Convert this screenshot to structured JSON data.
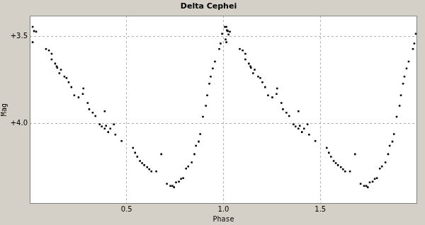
{
  "chart_data": {
    "type": "scatter",
    "title": "Delta Cephei",
    "x_label": "Phase",
    "y_label": "Mag",
    "color": "#000000",
    "marker": "square",
    "grid": true,
    "xlim": [
      0,
      2
    ],
    "xticks": [
      0.5,
      {
        "value": 1,
        "label": "1.0"
      },
      1.5
    ],
    "ylim": [
      3.38,
      4.46
    ],
    "yticks": [
      {
        "value": 3.5,
        "label": "+3.5"
      },
      {
        "value": 4,
        "label": "+4.0"
      }
    ],
    "x": [
      0.015,
      0.022,
      0.033,
      0.015,
      0.084,
      0.099,
      0.113,
      0.113,
      0.131,
      0.139,
      0.142,
      0.153,
      0.161,
      0.179,
      0.19,
      0.201,
      0.215,
      0.23,
      0.252,
      0.277,
      0.274,
      0.299,
      0.307,
      0.325,
      0.339,
      0.387,
      0.361,
      0.372,
      0.387,
      0.394,
      0.405,
      0.416,
      0.434,
      0.442,
      0.474,
      0.533,
      0.544,
      0.555,
      0.569,
      0.58,
      0.591,
      0.606,
      0.617,
      0.628,
      0.653,
      0.679,
      0.708,
      0.726,
      0.737,
      0.745,
      0.755,
      0.77,
      0.781,
      0.792,
      0.807,
      0.818,
      0.836,
      0.85,
      0.858,
      0.872,
      0.88,
      0.894,
      0.909,
      0.916,
      0.927,
      0.934,
      0.945,
      0.956,
      0.978,
      0.985,
      0.993,
      1.007,
      1.018,
      1.026,
      1.011,
      1.015,
      1.022,
      1.033,
      1.015,
      1.084,
      1.099,
      1.113,
      1.113,
      1.131,
      1.139,
      1.142,
      1.153,
      1.161,
      1.179,
      1.19,
      1.201,
      1.215,
      1.23,
      1.252,
      1.277,
      1.274,
      1.299,
      1.307,
      1.325,
      1.339,
      1.387,
      1.361,
      1.372,
      1.387,
      1.394,
      1.405,
      1.416,
      1.434,
      1.442,
      1.474,
      1.533,
      1.544,
      1.555,
      1.569,
      1.58,
      1.591,
      1.606,
      1.617,
      1.628,
      1.653,
      1.679,
      1.708,
      1.726,
      1.737,
      1.745,
      1.755,
      1.77,
      1.781,
      1.792,
      1.807,
      1.818,
      1.836,
      1.85,
      1.858,
      1.872,
      1.88,
      1.894,
      1.909,
      1.916,
      1.927,
      1.934,
      1.945,
      1.956,
      1.978,
      1.985,
      1.993
    ],
    "values": [
      3.444,
      3.468,
      3.472,
      3.532,
      3.571,
      3.579,
      3.599,
      3.631,
      3.655,
      3.671,
      3.679,
      3.71,
      3.69,
      3.73,
      3.738,
      3.762,
      3.79,
      3.837,
      3.849,
      3.798,
      3.829,
      3.881,
      3.917,
      3.937,
      3.956,
      3.929,
      4.004,
      4.016,
      4.028,
      4.012,
      4.048,
      4.028,
      4.004,
      4.063,
      4.099,
      4.139,
      4.167,
      4.19,
      4.214,
      4.226,
      4.238,
      4.25,
      4.262,
      4.274,
      4.274,
      4.175,
      4.345,
      4.357,
      4.357,
      4.365,
      4.337,
      4.333,
      4.317,
      4.313,
      4.258,
      4.246,
      4.222,
      4.175,
      4.127,
      4.103,
      4.06,
      3.96,
      3.897,
      3.837,
      3.77,
      3.73,
      3.683,
      3.643,
      3.571,
      3.54,
      3.484,
      3.444,
      3.464,
      3.488,
      3.516,
      3.444,
      3.468,
      3.472,
      3.532,
      3.571,
      3.579,
      3.599,
      3.631,
      3.655,
      3.671,
      3.679,
      3.71,
      3.69,
      3.73,
      3.738,
      3.762,
      3.79,
      3.837,
      3.849,
      3.798,
      3.829,
      3.881,
      3.917,
      3.937,
      3.956,
      3.929,
      4.004,
      4.016,
      4.028,
      4.012,
      4.048,
      4.028,
      4.004,
      4.063,
      4.099,
      4.139,
      4.167,
      4.19,
      4.214,
      4.226,
      4.238,
      4.25,
      4.262,
      4.274,
      4.274,
      4.175,
      4.345,
      4.357,
      4.357,
      4.365,
      4.337,
      4.333,
      4.317,
      4.313,
      4.258,
      4.246,
      4.222,
      4.175,
      4.127,
      4.103,
      4.06,
      3.96,
      3.897,
      3.837,
      3.77,
      3.73,
      3.683,
      3.643,
      3.571,
      3.54,
      3.484
    ]
  }
}
